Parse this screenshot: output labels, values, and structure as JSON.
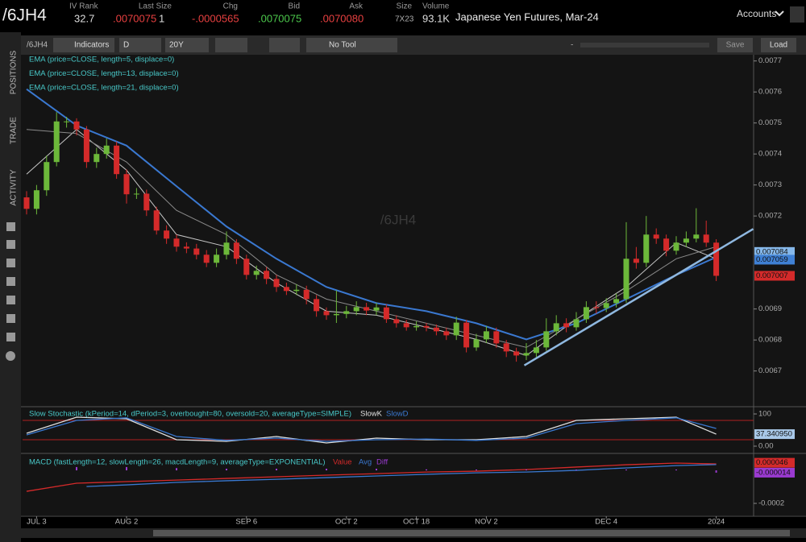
{
  "header": {
    "symbol": "/6JH4",
    "fields": [
      {
        "label": "IV Rank",
        "value": "32.7"
      },
      {
        "label": "Last Size",
        "value": ".0070075",
        "extra": "1"
      },
      {
        "label": "Chg",
        "value": "-.0000565"
      },
      {
        "label": "Bid",
        "value": ".0070075"
      },
      {
        "label": "Ask",
        "value": ".0070080"
      },
      {
        "label": "Size",
        "value": "7X23"
      },
      {
        "label": "Volume",
        "value": "93.1K"
      }
    ],
    "description": "Japanese Yen Futures, Mar-24",
    "accounts": "Accounts"
  },
  "toolbar": {
    "symbol": "/6JH4",
    "indicators": "Indicators",
    "aggregation": "D",
    "period": "20Y",
    "tool": "No Tool",
    "zoom": "-",
    "save": "Save",
    "load": "Load"
  },
  "side_tabs": [
    "POSITIONS",
    "TRADE",
    "ACTIVITY"
  ],
  "chart_data": [
    {
      "type": "candlestick",
      "watermark": "/6JH4",
      "categories": [
        null,
        "JUL 3",
        null,
        null,
        null,
        null,
        null,
        null,
        null,
        null,
        "AUG 2",
        null,
        null,
        null,
        null,
        null,
        null,
        null,
        null,
        null,
        null,
        null,
        "SEP 6",
        null,
        null,
        null,
        null,
        null,
        null,
        null,
        null,
        null,
        "OCT 2",
        null,
        null,
        null,
        null,
        null,
        null,
        "OCT 18",
        null,
        null,
        null,
        null,
        null,
        null,
        "NOV 2",
        null,
        null,
        null,
        null,
        null,
        null,
        null,
        null,
        null,
        null,
        null,
        "DEC 4",
        null,
        null,
        null,
        null,
        null,
        null,
        null,
        null,
        null,
        null,
        "2024"
      ],
      "open": [
        0.00726,
        0.007223,
        0.007283,
        0.007374,
        0.007505,
        0.007505,
        0.007479,
        0.007374,
        0.0074,
        0.007427,
        0.007335,
        0.00727,
        0.007272,
        0.007218,
        0.007153,
        0.007127,
        0.007101,
        0.007095,
        0.007075,
        0.007049,
        0.007075,
        0.007114,
        0.007062,
        0.00701,
        0.007023,
        0.006997,
        0.006971,
        0.006958,
        0.006962,
        0.006932,
        0.006893,
        0.00688,
        0.006884,
        0.006893,
        0.006906,
        0.006895,
        0.006905,
        0.006867,
        0.006854,
        0.006841,
        0.006845,
        0.00684,
        0.006828,
        0.006815,
        0.006856,
        0.006776,
        0.006802,
        0.006828,
        0.006789,
        0.006763,
        0.00675,
        0.006758,
        0.006776,
        0.006828,
        0.006854,
        0.006841,
        0.006867,
        0.006906,
        0.006903,
        0.006919,
        0.006932,
        0.007062,
        0.007049,
        0.00714,
        0.007127,
        0.007088,
        0.007114,
        0.007127,
        0.00714,
        0.007114
      ],
      "high": [
        0.00728,
        0.0073,
        0.007395,
        0.007535,
        0.00752,
        0.007515,
        0.00749,
        0.00742,
        0.00745,
        0.00744,
        0.00735,
        0.00729,
        0.007285,
        0.00723,
        0.00717,
        0.00714,
        0.007115,
        0.00711,
        0.00709,
        0.007095,
        0.00715,
        0.007125,
        0.007075,
        0.00704,
        0.007035,
        0.00701,
        0.006985,
        0.00698,
        0.006975,
        0.006945,
        0.006905,
        0.00696,
        0.00691,
        0.006925,
        0.00692,
        0.00692,
        0.006915,
        0.00688,
        0.006865,
        0.00686,
        0.006855,
        0.00685,
        0.00684,
        0.006875,
        0.006865,
        0.00682,
        0.006845,
        0.00684,
        0.0068,
        0.006775,
        0.00679,
        0.0068,
        0.00687,
        0.00688,
        0.00687,
        0.00689,
        0.006925,
        0.006925,
        0.006935,
        0.00695,
        0.00718,
        0.0071,
        0.0072,
        0.00716,
        0.00714,
        0.007135,
        0.00715,
        0.007225,
        0.007185,
        0.007125
      ],
      "low": [
        0.007205,
        0.007205,
        0.007265,
        0.00736,
        0.007485,
        0.00746,
        0.007355,
        0.007355,
        0.007385,
        0.00732,
        0.00724,
        0.007255,
        0.0072,
        0.00714,
        0.00711,
        0.007085,
        0.00708,
        0.00706,
        0.007035,
        0.007035,
        0.00706,
        0.007045,
        0.006995,
        0.006995,
        0.00698,
        0.006955,
        0.006945,
        0.006945,
        0.006915,
        0.006875,
        0.006865,
        0.006855,
        0.00687,
        0.00688,
        0.00688,
        0.00688,
        0.006855,
        0.00684,
        0.00683,
        0.00683,
        0.006828,
        0.006815,
        0.0068,
        0.0068,
        0.00676,
        0.006765,
        0.00679,
        0.006775,
        0.006745,
        0.00673,
        0.006735,
        0.006745,
        0.006765,
        0.006815,
        0.006825,
        0.00683,
        0.006855,
        0.006885,
        0.00689,
        0.006905,
        0.00692,
        0.00703,
        0.007035,
        0.00711,
        0.00707,
        0.007075,
        0.0071,
        0.007115,
        0.0071,
        0.00699
      ],
      "close": [
        0.007223,
        0.007283,
        0.007374,
        0.007505,
        0.007505,
        0.007479,
        0.007374,
        0.0074,
        0.007427,
        0.007335,
        0.00727,
        0.007272,
        0.007218,
        0.007153,
        0.007127,
        0.007101,
        0.007095,
        0.007075,
        0.007049,
        0.007075,
        0.007114,
        0.007062,
        0.00701,
        0.007023,
        0.006997,
        0.006971,
        0.006958,
        0.006962,
        0.006932,
        0.006893,
        0.00688,
        0.006884,
        0.006893,
        0.006906,
        0.006895,
        0.006905,
        0.006867,
        0.006854,
        0.006841,
        0.006845,
        0.00684,
        0.006828,
        0.006815,
        0.006856,
        0.006776,
        0.006802,
        0.006828,
        0.006789,
        0.006763,
        0.00675,
        0.006758,
        0.006776,
        0.006828,
        0.006854,
        0.006841,
        0.006867,
        0.006906,
        0.006903,
        0.006919,
        0.006932,
        0.007062,
        0.007049,
        0.00714,
        0.007127,
        0.007088,
        0.007114,
        0.007127,
        0.00714,
        0.007114,
        0.007007
      ],
      "up_color": "#6cb83a",
      "down_color": "#d42a2a",
      "series": [
        {
          "name": "EMA (price=CLOSE, length=5, displace=0)",
          "color": "#c8c8c8",
          "x": [
            0,
            5,
            10,
            15,
            20,
            25,
            30,
            35,
            40,
            45,
            50,
            55,
            60,
            65,
            69
          ],
          "values": [
            0.007335,
            0.007479,
            0.007348,
            0.00714,
            0.007101,
            0.006984,
            0.006893,
            0.00688,
            0.006841,
            0.006802,
            0.00675,
            0.006867,
            0.006971,
            0.007114,
            0.007062
          ]
        },
        {
          "name": "EMA (price=CLOSE, length=13, displace=0)",
          "color": "#8a8a8a",
          "x": [
            0,
            5,
            10,
            15,
            20,
            25,
            30,
            35,
            40,
            45,
            50,
            55,
            60,
            65,
            69
          ],
          "values": [
            0.007479,
            0.007466,
            0.007374,
            0.007218,
            0.00714,
            0.00701,
            0.006932,
            0.006893,
            0.006854,
            0.006815,
            0.006776,
            0.006867,
            0.006958,
            0.007062,
            0.007101
          ]
        },
        {
          "name": "EMA (price=CLOSE, length=21, displace=0)",
          "color": "#3a78d0",
          "x": [
            0,
            5,
            10,
            15,
            20,
            25,
            30,
            35,
            40,
            45,
            50,
            55,
            60,
            65,
            69
          ],
          "values": [
            0.007609,
            0.007492,
            0.007427,
            0.007296,
            0.007166,
            0.007062,
            0.006971,
            0.006919,
            0.006893,
            0.006854,
            0.006802,
            0.006854,
            0.006932,
            0.00701,
            0.007067
          ]
        }
      ],
      "trendline": {
        "x": [
          49.8,
          72.7
        ],
        "values": [
          0.006718,
          0.007158
        ],
        "color": "#8fb8e0"
      },
      "ylim": [
        0.00659,
        0.00772
      ],
      "yticks": [
        0.0067,
        0.0068,
        0.0069,
        0.0072,
        0.0073,
        0.0074,
        0.0075,
        0.0076,
        0.0077
      ],
      "flags": [
        0.007084,
        0.007059,
        0.007007
      ],
      "flag_colors": [
        "#86b8ea",
        "#3f80d4",
        "#d42a2a"
      ],
      "grid": false
    },
    {
      "type": "line",
      "title": "Slow Stochastic (kPeriod=14, dPeriod=3, overbought=80, oversold=20, averageType=SIMPLE)",
      "overbought": 80,
      "oversold": 20,
      "series": [
        {
          "name": "SlowK",
          "color": "#e0e0e0",
          "x": [
            0,
            5,
            10,
            15,
            20,
            25,
            30,
            35,
            40,
            45,
            50,
            55,
            60,
            65,
            69
          ],
          "values": [
            40,
            90,
            85,
            20,
            15,
            30,
            10,
            25,
            20,
            20,
            30,
            80,
            85,
            90,
            37.34095
          ]
        },
        {
          "name": "SlowD",
          "color": "#3a78d0",
          "x": [
            0,
            5,
            10,
            15,
            20,
            25,
            30,
            35,
            40,
            45,
            50,
            55,
            60,
            65,
            69
          ],
          "values": [
            35,
            80,
            88,
            30,
            18,
            25,
            15,
            20,
            22,
            18,
            25,
            70,
            80,
            88,
            55
          ]
        }
      ],
      "ylim": [
        -15,
        115
      ],
      "yticks": [
        {
          "value": 0,
          "label": "0.00"
        },
        100
      ],
      "flags": [
        {
          "value": 37.34095,
          "label": "37.340950"
        }
      ],
      "flag_colors": [
        "#a8c8e8"
      ]
    },
    {
      "type": "macd",
      "title": "MACD (fastLength=12, slowLength=26, macdLength=9, averageType=EXPONENTIAL)",
      "series": [
        {
          "name": "Value",
          "color": "#d42a2a",
          "x": [
            0,
            5,
            10,
            15,
            20,
            25,
            30,
            35,
            40,
            45,
            50,
            55,
            60,
            65,
            69
          ],
          "values": [
            -0.000127,
            -7.8e-05,
            -6.8e-05,
            -5.9e-05,
            -4.9e-05,
            -3.9e-05,
            -2.9e-05,
            -2e-05,
            -1e-05,
            -5e-06,
            5e-06,
            2e-05,
            3.4e-05,
            4.4e-05,
            3.9e-05
          ]
        },
        {
          "name": "Avg",
          "color": "#3a78d0",
          "x": [
            6,
            10,
            15,
            20,
            25,
            30,
            35,
            40,
            45,
            50,
            55,
            60,
            65,
            69
          ],
          "values": [
            -9.8e-05,
            -8.8e-05,
            -7.3e-05,
            -6.3e-05,
            -5.4e-05,
            -4.4e-05,
            -3.4e-05,
            -2.4e-05,
            -1.5e-05,
            -1e-05,
            0,
            1.5e-05,
            2.9e-05,
            3.5e-05
          ]
        },
        {
          "name": "Diff",
          "color": "#9a3ad0",
          "x": [
            5,
            10,
            15,
            20,
            25,
            30,
            35,
            40,
            45,
            50,
            55,
            60,
            65,
            69
          ],
          "values": [
            2e-05,
            2e-05,
            1.4e-05,
            1e-05,
            1e-05,
            1e-05,
            1e-05,
            6e-06,
            5e-06,
            5e-06,
            5e-06,
            5e-06,
            5e-06,
            -1.4e-05
          ]
        }
      ],
      "ylim": [
        -0.000273,
        8.8e-05
      ],
      "yticks": [
        -0.0002
      ],
      "flags": [
        4.6e-05,
        -1.4e-05
      ],
      "flag_colors": [
        "#d42a2a",
        "#9a3ad0"
      ]
    }
  ]
}
